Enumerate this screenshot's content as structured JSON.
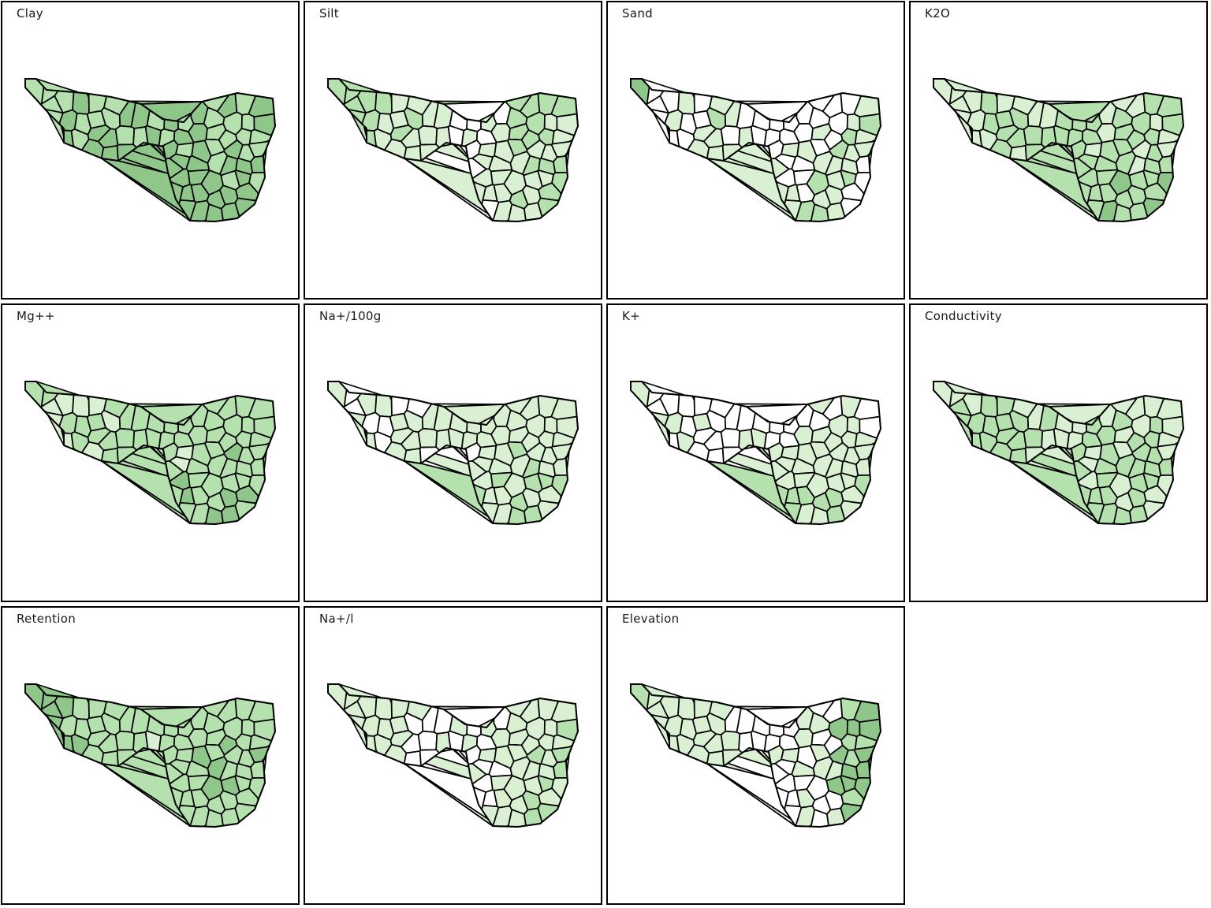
{
  "panels": [
    {
      "title": "Clay"
    },
    {
      "title": "Silt"
    },
    {
      "title": "Sand"
    },
    {
      "title": "K2O"
    },
    {
      "title": "Mg++"
    },
    {
      "title": "Na+/100g"
    },
    {
      "title": "K+"
    },
    {
      "title": "Conductivity"
    },
    {
      "title": "Retention"
    },
    {
      "title": "Na+/l"
    },
    {
      "title": "Elevation"
    }
  ],
  "colors": {
    "ramp": [
      "#ffffff",
      "#d9f0d3",
      "#b4e1ae",
      "#8fc68a",
      "#5e9a5e"
    ],
    "border": "#000000",
    "background": "#ffffff"
  },
  "chart_data": {
    "type": "heatmap",
    "layout": "small multiples",
    "variables": [
      "Clay",
      "Silt",
      "Sand",
      "K2O",
      "Mg++",
      "Na+/100g",
      "K+",
      "Conductivity",
      "Retention",
      "Na+/l",
      "Elevation"
    ],
    "palette": "white-to-green sequential",
    "levels": 5
  }
}
